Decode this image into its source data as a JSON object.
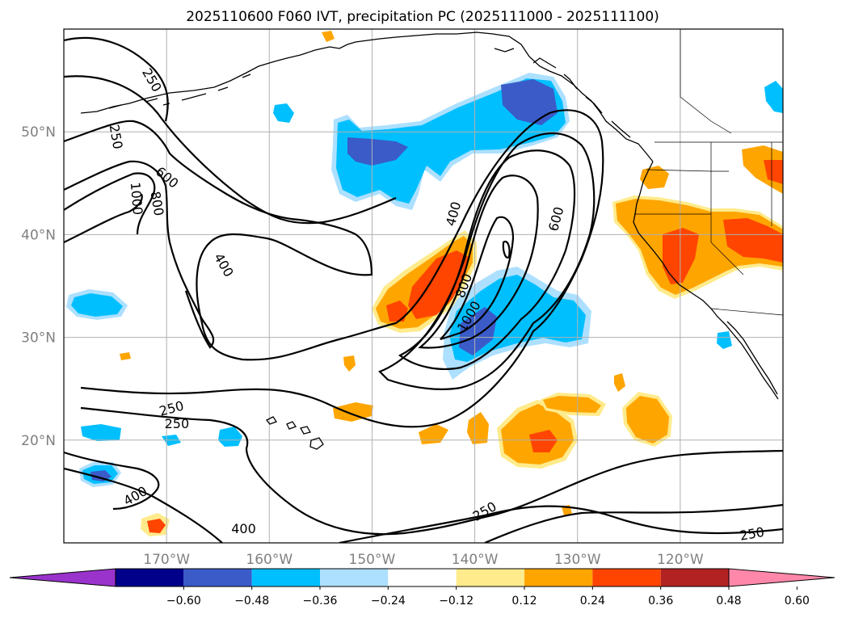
{
  "title": "2025110600 F060 IVT, precipitation PC (2025111000 - 2025111100)",
  "map": {
    "projection": "PlateCarree",
    "lon_range": [
      -180,
      -110
    ],
    "lat_range": [
      10,
      60
    ],
    "x_ticks": [
      {
        "lon": -170,
        "label": "170°W"
      },
      {
        "lon": -160,
        "label": "160°W"
      },
      {
        "lon": -150,
        "label": "150°W"
      },
      {
        "lon": -140,
        "label": "140°W"
      },
      {
        "lon": -130,
        "label": "130°W"
      },
      {
        "lon": -120,
        "label": "120°W"
      }
    ],
    "y_ticks": [
      {
        "lat": 50,
        "label": "50°N"
      },
      {
        "lat": 40,
        "label": "40°N"
      },
      {
        "lat": 30,
        "label": "30°N"
      },
      {
        "lat": 20,
        "label": "20°N"
      }
    ],
    "gridlines": true,
    "ivt_contour_levels": [
      250,
      400,
      600,
      800,
      1000
    ],
    "contour_labels": [
      {
        "text": "250",
        "lon": -171.5,
        "lat": 55.0,
        "angle": 60
      },
      {
        "text": "250",
        "lon": -175.0,
        "lat": 49.5,
        "angle": 80
      },
      {
        "text": "600",
        "lon": -170.0,
        "lat": 45.5,
        "angle": 40
      },
      {
        "text": "800",
        "lon": -171.0,
        "lat": 43.0,
        "angle": 80
      },
      {
        "text": "1000",
        "lon": -173.0,
        "lat": 43.5,
        "angle": 85
      },
      {
        "text": "400",
        "lon": -164.5,
        "lat": 37.0,
        "angle": 60
      },
      {
        "text": "400",
        "lon": -142.0,
        "lat": 42.0,
        "angle": -75
      },
      {
        "text": "600",
        "lon": -132.0,
        "lat": 41.5,
        "angle": -75
      },
      {
        "text": "800",
        "lon": -141.0,
        "lat": 35.0,
        "angle": -70
      },
      {
        "text": "1000",
        "lon": -140.5,
        "lat": 32.0,
        "angle": -60
      },
      {
        "text": "250",
        "lon": -169.5,
        "lat": 23.0,
        "angle": -15
      },
      {
        "text": "250",
        "lon": -169.0,
        "lat": 21.5,
        "angle": 0
      },
      {
        "text": "400",
        "lon": -173.0,
        "lat": 14.5,
        "angle": -30
      },
      {
        "text": "400",
        "lon": -162.5,
        "lat": 11.3,
        "angle": 0
      },
      {
        "text": "250",
        "lon": -139.0,
        "lat": 13.0,
        "angle": -30
      },
      {
        "text": "250",
        "lon": -113.0,
        "lat": 10.8,
        "angle": -10
      }
    ]
  },
  "colorbar": {
    "tick_labels": [
      "−0.60",
      "−0.48",
      "−0.36",
      "−0.24",
      "−0.12",
      "0.12",
      "0.24",
      "0.36",
      "0.48",
      "0.60"
    ],
    "bins": [
      {
        "range": "< -0.60",
        "color": "#9933CC"
      },
      {
        "range": "-0.60 to -0.48",
        "color": "#00008B"
      },
      {
        "range": "-0.48 to -0.36",
        "color": "#3A5BC8"
      },
      {
        "range": "-0.36 to -0.24",
        "color": "#00BFFF"
      },
      {
        "range": "-0.24 to -0.12",
        "color": "#ADE0FF"
      },
      {
        "range": "-0.12 to 0.12",
        "color": "#FFFFFF"
      },
      {
        "range": "0.12 to 0.24",
        "color": "#FFEB8C"
      },
      {
        "range": "0.24 to 0.36",
        "color": "#FFA500"
      },
      {
        "range": "0.36 to 0.48",
        "color": "#FF4500"
      },
      {
        "range": "0.48 to 0.60",
        "color": "#B22222"
      },
      {
        "range": "> 0.60",
        "color": "#FF88AA"
      }
    ]
  },
  "colors": {
    "light_blue": "#ADE0FF",
    "sky_blue": "#00BFFF",
    "royal_blue": "#3A5BC8",
    "light_yellow": "#FFEB8C",
    "orange": "#FFA500",
    "red_orange": "#FF4500"
  }
}
